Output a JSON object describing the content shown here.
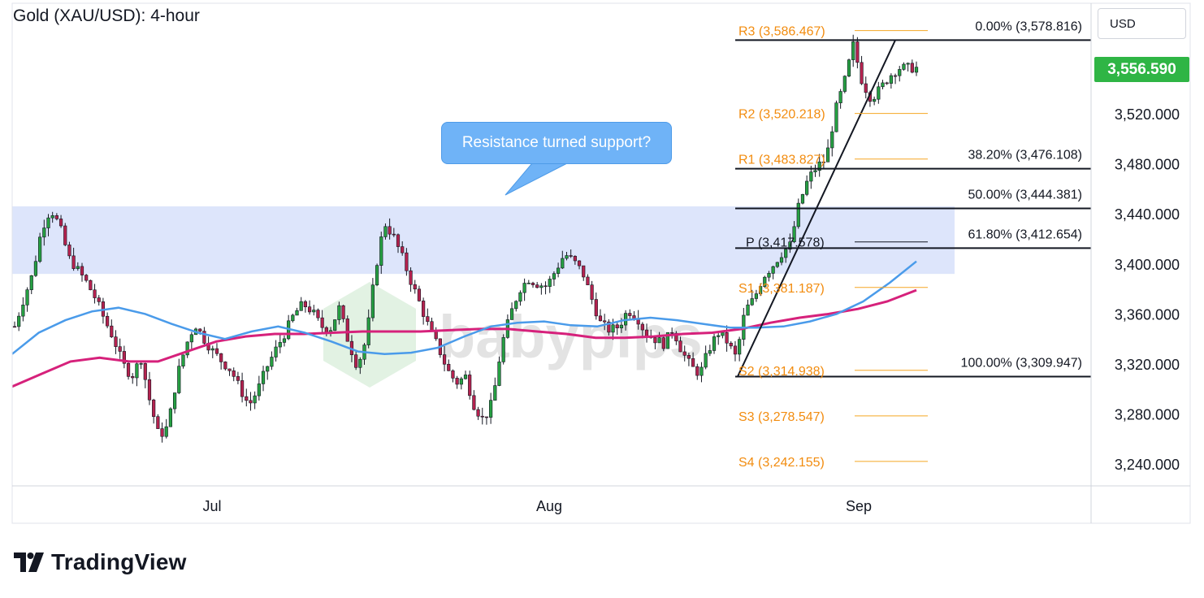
{
  "header": {
    "title": "Gold (XAU/USD): 4-hour",
    "currency": "USD"
  },
  "last_price": {
    "label": "3,556.590",
    "value": 3556.59,
    "color": "#2fb545"
  },
  "callout": {
    "text": "Resistance turned support?"
  },
  "watermark": {
    "text": "babypips"
  },
  "branding": {
    "name": "TradingView"
  },
  "colors": {
    "fast_ma": "#4a9bea",
    "slow_ma": "#d6217b",
    "up_candle": "#26a042",
    "down_candle": "#b5224f",
    "pivot_line": "#f5a623",
    "pivot_text": "#f28c0f",
    "zone": "#dde5fb"
  },
  "chart_data": {
    "type": "candlestick",
    "title": "Gold (XAU/USD): 4-hour",
    "y_axis": {
      "range": [
        3220,
        3596
      ],
      "ticks": [
        3240,
        3280,
        3320,
        3360,
        3400,
        3440,
        3480,
        3520
      ],
      "tick_labels": [
        "3,240.000",
        "3,280.000",
        "3,320.000",
        "3,360.000",
        "3,400.000",
        "3,440.000",
        "3,480.000",
        "3,520.000"
      ]
    },
    "x_axis": {
      "labels": [
        "Jul",
        "Aug",
        "Sep"
      ]
    },
    "resistance_zone": {
      "low": 3392,
      "high": 3446
    },
    "pivots": [
      {
        "label": "R3 (3,586.467)",
        "value": 3586.467
      },
      {
        "label": "R2 (3,520.218)",
        "value": 3520.218
      },
      {
        "label": "R1 (3,483.827)",
        "value": 3483.827
      },
      {
        "label": "P (3,417.578)",
        "value": 3417.578
      },
      {
        "label": "S1 (3,381.187)",
        "value": 3381.187
      },
      {
        "label": "S2 (3,314.938)",
        "value": 3314.938
      },
      {
        "label": "S3 (3,278.547)",
        "value": 3278.547
      },
      {
        "label": "S4 (3,242.155)",
        "value": 3242.155
      }
    ],
    "fibonacci": [
      {
        "label": "0.00% (3,578.816)",
        "value": 3578.816
      },
      {
        "label": "38.20% (3,476.108)",
        "value": 3476.108
      },
      {
        "label": "50.00% (3,444.381)",
        "value": 3444.381
      },
      {
        "label": "61.80% (3,412.654)",
        "value": 3412.654
      },
      {
        "label": "100.00% (3,309.947)",
        "value": 3309.947
      }
    ],
    "price_path": [
      3350,
      3372,
      3392,
      3428,
      3444,
      3430,
      3405,
      3395,
      3385,
      3372,
      3355,
      3340,
      3320,
      3310,
      3325,
      3290,
      3262,
      3270,
      3310,
      3335,
      3352,
      3340,
      3330,
      3322,
      3315,
      3300,
      3287,
      3300,
      3318,
      3332,
      3345,
      3360,
      3368,
      3362,
      3350,
      3348,
      3365,
      3338,
      3318,
      3340,
      3395,
      3433,
      3422,
      3405,
      3385,
      3367,
      3348,
      3333,
      3315,
      3305,
      3310,
      3286,
      3275,
      3290,
      3335,
      3360,
      3380,
      3388,
      3384,
      3382,
      3395,
      3408,
      3402,
      3393,
      3372,
      3352,
      3347,
      3350,
      3363,
      3358,
      3344,
      3340,
      3336,
      3348,
      3330,
      3318,
      3312,
      3332,
      3345,
      3338,
      3325,
      3363,
      3372,
      3390,
      3398,
      3408,
      3415,
      3448,
      3468,
      3478,
      3484,
      3522,
      3545,
      3575,
      3545,
      3532,
      3540,
      3550,
      3556.59
    ],
    "series": [
      {
        "name": "",
        "values": [
          3328,
          3345,
          3355,
          3362,
          3365,
          3360,
          3352,
          3345,
          3340,
          3346,
          3350,
          3345,
          3338,
          3330,
          3328,
          3329,
          3333,
          3342,
          3350,
          3353,
          3354,
          3351,
          3350,
          3355,
          3357,
          3355,
          3352,
          3349,
          3349,
          3350,
          3354,
          3360,
          3370,
          3385,
          3402
        ]
      },
      {
        "name": "",
        "values": [
          3302,
          3312,
          3322,
          3325,
          3322,
          3322,
          3330,
          3338,
          3342,
          3344,
          3344,
          3345,
          3346,
          3346,
          3346,
          3347,
          3348,
          3348,
          3346,
          3344,
          3341,
          3341,
          3342,
          3344,
          3345,
          3348,
          3353,
          3357,
          3360,
          3364,
          3370,
          3379
        ]
      }
    ]
  }
}
